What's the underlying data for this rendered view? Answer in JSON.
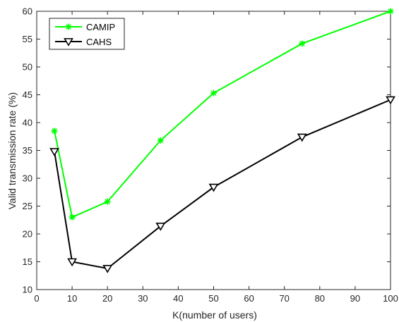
{
  "chart_data": {
    "type": "line",
    "xlabel": "K(number of users)",
    "ylabel": "Valid transmission rate (%)",
    "xlim": [
      0,
      100
    ],
    "ylim": [
      10,
      60
    ],
    "xticks": [
      0,
      10,
      20,
      30,
      40,
      50,
      60,
      70,
      80,
      90,
      100
    ],
    "yticks": [
      10,
      15,
      20,
      25,
      30,
      35,
      40,
      45,
      50,
      55,
      60
    ],
    "grid": false,
    "legend_position": "top-left",
    "series": [
      {
        "name": "CAMIP",
        "color": "#00ff00",
        "marker": "asterisk",
        "x": [
          5,
          10,
          20,
          35,
          50,
          75,
          100
        ],
        "y": [
          38.5,
          23.0,
          25.8,
          36.8,
          45.3,
          54.2,
          60.0
        ]
      },
      {
        "name": "CAHS",
        "color": "#000000",
        "marker": "triangle-down",
        "x": [
          5,
          10,
          20,
          35,
          50,
          75,
          100
        ],
        "y": [
          34.8,
          15.0,
          13.8,
          21.4,
          28.4,
          37.4,
          44.1
        ]
      }
    ]
  }
}
